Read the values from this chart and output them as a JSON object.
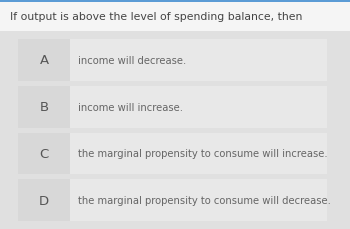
{
  "title": "If output is above the level of spending balance, then",
  "title_fontsize": 7.8,
  "title_color": "#444444",
  "top_bar_color": "#5b9bd5",
  "top_bg_color": "#f5f5f5",
  "main_bg_color": "#e0e0e0",
  "row_bg_color": "#e8e8e8",
  "letter_cell_color": "#d8d8d8",
  "options": [
    {
      "letter": "A",
      "text": "income will decrease."
    },
    {
      "letter": "B",
      "text": "income will increase."
    },
    {
      "letter": "C",
      "text": "the marginal propensity to consume will increase."
    },
    {
      "letter": "D",
      "text": "the marginal propensity to consume will decrease."
    }
  ],
  "letter_fontsize": 9.5,
  "text_fontsize": 7.2,
  "letter_color": "#555555",
  "text_color": "#666666",
  "fig_width": 3.5,
  "fig_height": 2.3,
  "dpi": 100
}
